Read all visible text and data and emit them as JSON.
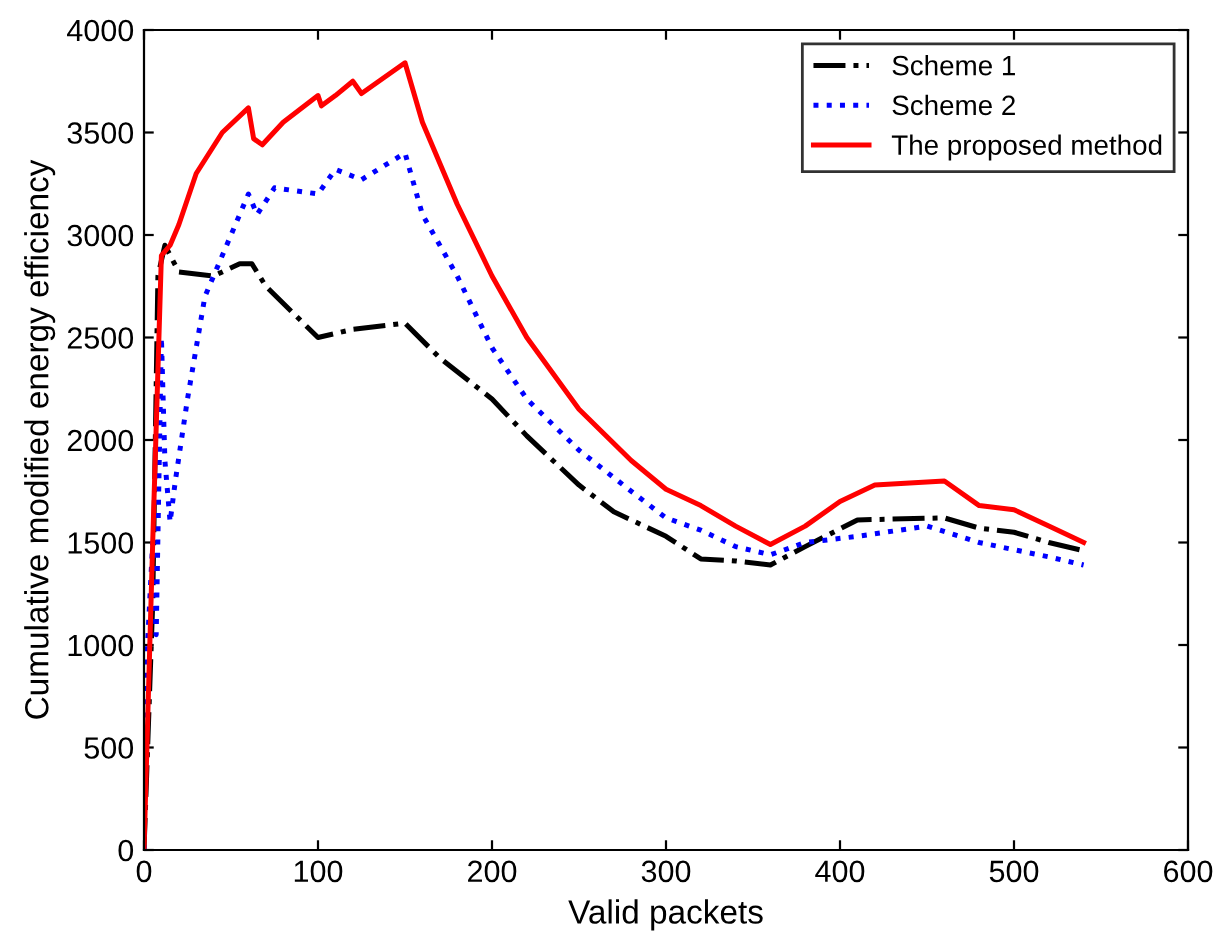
{
  "chart_data": {
    "type": "line",
    "xlabel": "Valid packets",
    "ylabel": "Cumulative modified energy efficiency",
    "xlim": [
      0,
      600
    ],
    "ylim": [
      0,
      4000
    ],
    "xticks": [
      0,
      100,
      200,
      300,
      400,
      500,
      600
    ],
    "yticks": [
      0,
      500,
      1000,
      1500,
      2000,
      2500,
      3000,
      3500,
      4000
    ],
    "grid": false,
    "legend": "top right",
    "series": [
      {
        "name": "Scheme 1",
        "color": "#000000",
        "line_style": "dashdot",
        "x": [
          0,
          5,
          8,
          12,
          20,
          40,
          55,
          62,
          70,
          100,
          120,
          150,
          170,
          200,
          220,
          250,
          270,
          300,
          320,
          340,
          360,
          380,
          410,
          460,
          480,
          500,
          520,
          540
        ],
        "values": [
          0,
          1200,
          2800,
          2950,
          2820,
          2800,
          2860,
          2860,
          2750,
          2500,
          2540,
          2570,
          2400,
          2200,
          2020,
          1780,
          1650,
          1530,
          1420,
          1410,
          1390,
          1480,
          1610,
          1620,
          1570,
          1550,
          1500,
          1460
        ]
      },
      {
        "name": "Scheme 2",
        "color": "#0000ff",
        "line_style": "dotted",
        "x": [
          0,
          2,
          5,
          7,
          10,
          12,
          15,
          18,
          25,
          35,
          50,
          60,
          65,
          75,
          100,
          110,
          125,
          150,
          160,
          180,
          200,
          220,
          250,
          280,
          300,
          320,
          340,
          360,
          380,
          410,
          450,
          480,
          520,
          540
        ],
        "values": [
          0,
          1000,
          1500,
          1050,
          2500,
          1900,
          1600,
          1800,
          2200,
          2700,
          3000,
          3200,
          3100,
          3230,
          3200,
          3320,
          3270,
          3400,
          3100,
          2800,
          2450,
          2200,
          1950,
          1750,
          1620,
          1560,
          1480,
          1440,
          1500,
          1530,
          1580,
          1500,
          1430,
          1390
        ]
      },
      {
        "name": "The proposed method",
        "color": "#ff0000",
        "line_style": "solid",
        "x": [
          0,
          5,
          10,
          15,
          20,
          30,
          45,
          60,
          63,
          68,
          80,
          100,
          102,
          110,
          120,
          125,
          150,
          160,
          180,
          200,
          220,
          250,
          280,
          300,
          320,
          340,
          360,
          380,
          400,
          420,
          440,
          460,
          480,
          500,
          520,
          540
        ],
        "values": [
          0,
          1500,
          2900,
          2950,
          3050,
          3300,
          3500,
          3620,
          3470,
          3440,
          3550,
          3680,
          3630,
          3680,
          3750,
          3690,
          3840,
          3550,
          3150,
          2800,
          2500,
          2150,
          1900,
          1760,
          1680,
          1580,
          1490,
          1580,
          1700,
          1780,
          1790,
          1800,
          1680,
          1660,
          1580,
          1500
        ]
      }
    ]
  }
}
